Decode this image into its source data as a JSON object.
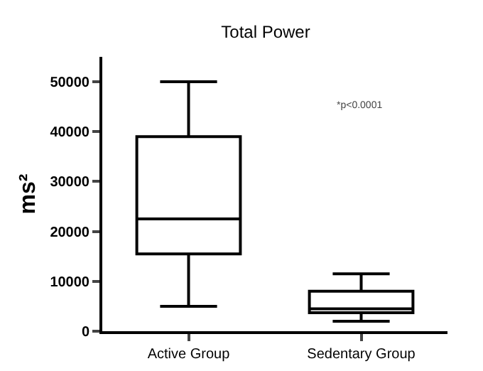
{
  "chart_data": {
    "type": "box",
    "title": "Total Power",
    "ylabel": "ms²",
    "categories": [
      "Active Group",
      "Sedentary Group"
    ],
    "boxes": [
      {
        "low": 5000,
        "q1": 15500,
        "median": 22500,
        "q3": 39000,
        "high": 50000
      },
      {
        "low": 2000,
        "q1": 3700,
        "median": 4500,
        "q3": 8000,
        "high": 11500
      }
    ],
    "color": "#000000",
    "ylim": [
      0,
      55000
    ],
    "yticks": [
      0,
      10000,
      20000,
      30000,
      40000,
      50000
    ],
    "grid": false,
    "annotations": [
      "*p<0.0001"
    ]
  }
}
